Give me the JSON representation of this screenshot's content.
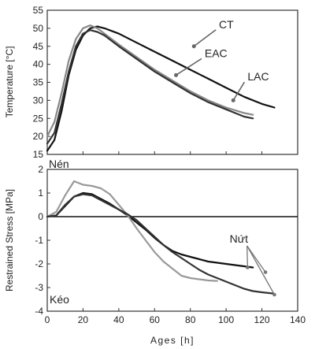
{
  "chart_data": [
    {
      "type": "line",
      "panel": "top",
      "ylabel": "Temperature [°C]",
      "xlim": [
        0,
        140
      ],
      "ylim": [
        15,
        55
      ],
      "xticks": [
        0,
        20,
        40,
        60,
        80,
        100,
        120,
        140
      ],
      "yticks": [
        15,
        20,
        25,
        30,
        35,
        40,
        45,
        50,
        55
      ],
      "show_xtick_labels": false,
      "grid": false,
      "series": [
        {
          "name": "CT",
          "color": "#111111",
          "x": [
            0,
            4,
            8,
            12,
            16,
            20,
            24,
            28,
            32,
            40,
            50,
            60,
            70,
            80,
            90,
            100,
            110,
            120,
            127
          ],
          "y": [
            16,
            19,
            27,
            37,
            44,
            48,
            50,
            50.5,
            50,
            48.5,
            46,
            43.5,
            41,
            38.5,
            36,
            33.5,
            31,
            29,
            28
          ]
        },
        {
          "name": "EAC",
          "color": "#888888",
          "x": [
            0,
            4,
            8,
            12,
            16,
            20,
            24,
            28,
            32,
            40,
            50,
            60,
            70,
            80,
            90,
            100,
            110,
            115
          ],
          "y": [
            20,
            24,
            32,
            41,
            47,
            50,
            50.8,
            50,
            48.5,
            45.5,
            42,
            38.5,
            35.5,
            32.5,
            30,
            28,
            26.5,
            26
          ]
        },
        {
          "name": "LAC",
          "color": "#333333",
          "x": [
            0,
            4,
            8,
            12,
            16,
            20,
            24,
            28,
            32,
            40,
            50,
            60,
            70,
            80,
            90,
            100,
            110,
            115
          ],
          "y": [
            18,
            21,
            29,
            38,
            45,
            48.5,
            49.5,
            49,
            48,
            45,
            41.5,
            38,
            35,
            32,
            29.5,
            27.5,
            25.5,
            25
          ]
        }
      ],
      "annotations": [
        {
          "text": "CT",
          "target": [
            82,
            45
          ],
          "label_at": [
            96,
            50
          ]
        },
        {
          "text": "EAC",
          "target": [
            72,
            37
          ],
          "label_at": [
            88,
            42
          ]
        },
        {
          "text": "LAC",
          "target": [
            104,
            30
          ],
          "label_at": [
            112,
            35.5
          ]
        }
      ]
    },
    {
      "type": "line",
      "panel": "bottom",
      "ylabel": "Restrained Stress [MPa]",
      "xlabel": "Ages [h]",
      "xlim": [
        0,
        140
      ],
      "ylim": [
        -4,
        2
      ],
      "xticks": [
        0,
        20,
        40,
        60,
        80,
        100,
        120,
        140
      ],
      "yticks": [
        -4,
        -3,
        -2,
        -1,
        0,
        1,
        2
      ],
      "zero_line": true,
      "grid": false,
      "series": [
        {
          "name": "CT",
          "color": "#111111",
          "x": [
            0,
            5,
            10,
            15,
            20,
            25,
            30,
            35,
            40,
            45,
            50,
            55,
            60,
            65,
            70,
            75,
            80,
            85,
            90,
            95,
            100,
            105,
            110,
            115
          ],
          "y": [
            0,
            0.05,
            0.45,
            0.85,
            1.0,
            0.95,
            0.75,
            0.55,
            0.3,
            0.05,
            -0.25,
            -0.55,
            -0.9,
            -1.2,
            -1.45,
            -1.6,
            -1.7,
            -1.8,
            -1.9,
            -1.95,
            -2.0,
            -2.05,
            -2.1,
            -2.15
          ]
        },
        {
          "name": "EAC",
          "color": "#999999",
          "x": [
            0,
            5,
            10,
            15,
            20,
            25,
            30,
            35,
            40,
            45,
            50,
            55,
            60,
            65,
            70,
            75,
            80,
            85,
            90,
            95
          ],
          "y": [
            0,
            0.2,
            0.9,
            1.5,
            1.35,
            1.3,
            1.2,
            0.95,
            0.5,
            0.05,
            -0.5,
            -1.0,
            -1.5,
            -1.9,
            -2.2,
            -2.5,
            -2.6,
            -2.65,
            -2.7,
            -2.72
          ]
        },
        {
          "name": "LAC",
          "color": "#333333",
          "x": [
            0,
            5,
            10,
            15,
            20,
            25,
            30,
            35,
            40,
            45,
            50,
            55,
            60,
            65,
            70,
            75,
            80,
            85,
            90,
            95,
            100,
            105,
            110,
            115,
            120,
            126
          ],
          "y": [
            0,
            0.05,
            0.5,
            0.85,
            0.95,
            0.9,
            0.7,
            0.5,
            0.3,
            0.1,
            -0.15,
            -0.5,
            -0.85,
            -1.2,
            -1.5,
            -1.75,
            -2.0,
            -2.25,
            -2.45,
            -2.6,
            -2.75,
            -2.9,
            -3.05,
            -3.15,
            -3.2,
            -3.25
          ]
        }
      ],
      "annotations": [
        {
          "text": "Nén",
          "position": "top-left"
        },
        {
          "text": "Kéo",
          "position": "bottom-left"
        },
        {
          "text": "Nứt",
          "label_at": [
            102,
            -1.1
          ],
          "targets": [
            [
              112,
              -2.15
            ],
            [
              122,
              -2.35
            ],
            [
              127,
              -3.3
            ]
          ]
        }
      ]
    }
  ]
}
